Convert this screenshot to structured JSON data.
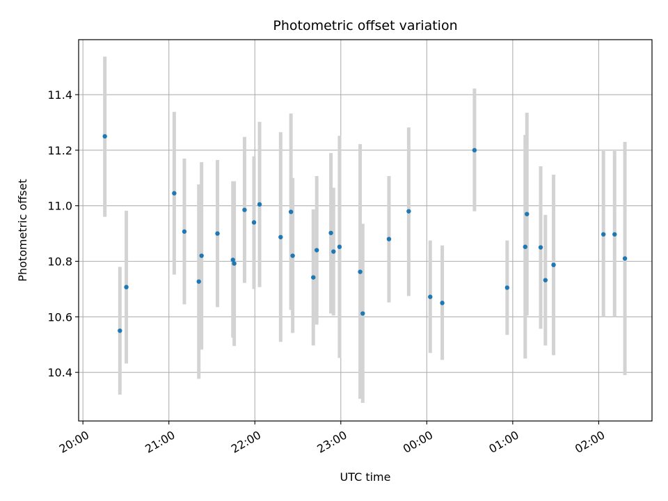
{
  "chart_data": {
    "type": "scatter",
    "title": "Photometric offset variation",
    "xlabel": "UTC time",
    "ylabel": "Photometric offset",
    "xlim_hours": [
      19.95,
      26.62
    ],
    "ylim": [
      10.225,
      11.598
    ],
    "x_ticks": [
      {
        "hour": 20,
        "label": "20:00"
      },
      {
        "hour": 21,
        "label": "21:00"
      },
      {
        "hour": 22,
        "label": "22:00"
      },
      {
        "hour": 23,
        "label": "23:00"
      },
      {
        "hour": 24,
        "label": "00:00"
      },
      {
        "hour": 25,
        "label": "01:00"
      },
      {
        "hour": 26,
        "label": "02:00"
      }
    ],
    "y_ticks": [
      {
        "value": 10.4,
        "label": "10.4"
      },
      {
        "value": 10.6,
        "label": "10.6"
      },
      {
        "value": 10.8,
        "label": "10.8"
      },
      {
        "value": 11.0,
        "label": "11.0"
      },
      {
        "value": 11.2,
        "label": "11.2"
      },
      {
        "value": 11.4,
        "label": "11.4"
      }
    ],
    "grid": true,
    "point_color": "#1f77b4",
    "errorbar_color": "#d3d3d3",
    "points": [
      {
        "t": 20.255,
        "y": 11.25,
        "lo": 10.96,
        "hi": 11.537
      },
      {
        "t": 20.43,
        "y": 10.55,
        "lo": 10.32,
        "hi": 10.78
      },
      {
        "t": 20.505,
        "y": 10.707,
        "lo": 10.432,
        "hi": 10.982
      },
      {
        "t": 21.062,
        "y": 11.045,
        "lo": 10.752,
        "hi": 11.338
      },
      {
        "t": 21.18,
        "y": 10.907,
        "lo": 10.645,
        "hi": 11.17
      },
      {
        "t": 21.348,
        "y": 10.727,
        "lo": 10.377,
        "hi": 11.077
      },
      {
        "t": 21.38,
        "y": 10.82,
        "lo": 10.482,
        "hi": 11.157
      },
      {
        "t": 21.565,
        "y": 10.9,
        "lo": 10.635,
        "hi": 11.165
      },
      {
        "t": 21.745,
        "y": 10.805,
        "lo": 10.525,
        "hi": 11.088
      },
      {
        "t": 21.76,
        "y": 10.792,
        "lo": 10.495,
        "hi": 11.088
      },
      {
        "t": 21.88,
        "y": 10.985,
        "lo": 10.722,
        "hi": 11.248
      },
      {
        "t": 21.99,
        "y": 10.94,
        "lo": 10.7,
        "hi": 11.178
      },
      {
        "t": 22.055,
        "y": 11.005,
        "lo": 10.707,
        "hi": 11.302
      },
      {
        "t": 22.3,
        "y": 10.887,
        "lo": 10.51,
        "hi": 11.265
      },
      {
        "t": 22.42,
        "y": 10.978,
        "lo": 10.625,
        "hi": 11.332
      },
      {
        "t": 22.44,
        "y": 10.82,
        "lo": 10.542,
        "hi": 11.1
      },
      {
        "t": 22.68,
        "y": 10.742,
        "lo": 10.497,
        "hi": 10.987
      },
      {
        "t": 22.72,
        "y": 10.84,
        "lo": 10.572,
        "hi": 11.107
      },
      {
        "t": 22.885,
        "y": 10.902,
        "lo": 10.612,
        "hi": 11.19
      },
      {
        "t": 22.915,
        "y": 10.835,
        "lo": 10.605,
        "hi": 11.065
      },
      {
        "t": 22.985,
        "y": 10.852,
        "lo": 10.452,
        "hi": 11.252
      },
      {
        "t": 23.225,
        "y": 10.762,
        "lo": 10.305,
        "hi": 11.222
      },
      {
        "t": 23.255,
        "y": 10.612,
        "lo": 10.29,
        "hi": 10.935
      },
      {
        "t": 23.56,
        "y": 10.88,
        "lo": 10.652,
        "hi": 11.107
      },
      {
        "t": 23.79,
        "y": 10.98,
        "lo": 10.675,
        "hi": 11.282
      },
      {
        "t": 24.04,
        "y": 10.672,
        "lo": 10.47,
        "hi": 10.875
      },
      {
        "t": 24.18,
        "y": 10.65,
        "lo": 10.445,
        "hi": 10.857
      },
      {
        "t": 24.555,
        "y": 11.2,
        "lo": 10.98,
        "hi": 11.422
      },
      {
        "t": 24.935,
        "y": 10.705,
        "lo": 10.535,
        "hi": 10.875
      },
      {
        "t": 25.145,
        "y": 10.852,
        "lo": 10.45,
        "hi": 11.255
      },
      {
        "t": 25.165,
        "y": 10.97,
        "lo": 10.605,
        "hi": 11.335
      },
      {
        "t": 25.325,
        "y": 10.85,
        "lo": 10.557,
        "hi": 11.142
      },
      {
        "t": 25.38,
        "y": 10.732,
        "lo": 10.497,
        "hi": 10.967
      },
      {
        "t": 25.475,
        "y": 10.787,
        "lo": 10.462,
        "hi": 11.112
      },
      {
        "t": 26.055,
        "y": 10.897,
        "lo": 10.6,
        "hi": 11.197
      },
      {
        "t": 26.185,
        "y": 10.897,
        "lo": 10.6,
        "hi": 11.197
      },
      {
        "t": 26.305,
        "y": 10.81,
        "lo": 10.39,
        "hi": 11.23
      }
    ]
  }
}
